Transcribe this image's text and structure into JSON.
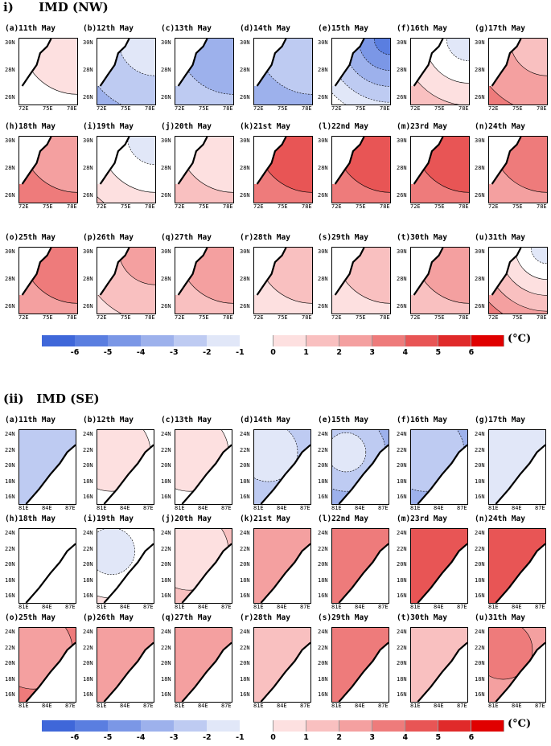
{
  "colors": {
    "-6": "#3f67d9",
    "-5": "#5a7ee0",
    "-4": "#7b97e6",
    "-3": "#9db1ec",
    "-2": "#becbf2",
    "-1": "#e1e7f8",
    "0": "#ffffff",
    "1": "#fde0e0",
    "2": "#f9c0c0",
    "3": "#f4a0a0",
    "4": "#ee7b7b",
    "5": "#e85555",
    "6": "#e02a2a",
    "7": "#e00000"
  },
  "colorbar": {
    "ticks": [
      "-6",
      "-5",
      "-4",
      "-3",
      "-2",
      "-1",
      "0",
      "1",
      "2",
      "3",
      "4",
      "5",
      "6"
    ],
    "levels": [
      "-6",
      "-5",
      "-4",
      "-3",
      "-2",
      "-1",
      "0",
      "1",
      "2",
      "3",
      "4",
      "5",
      "6",
      "7"
    ],
    "unit": "(°C)"
  },
  "sections": [
    {
      "id": "nw",
      "title": "i)      IMD (NW)",
      "ylabels": [
        "30N",
        "28N",
        "26N"
      ],
      "xlabels": [
        "72E",
        "75E",
        "78E"
      ],
      "panels": [
        {
          "label": "(a)11th May",
          "a": 0,
          "b": 1
        },
        {
          "label": "(b)12th May",
          "a": -3,
          "b": -1
        },
        {
          "label": "(c)13th May",
          "a": -2,
          "b": -3
        },
        {
          "label": "(d)14th May",
          "a": -3,
          "b": -2
        },
        {
          "label": "(e)15th May",
          "a": 1,
          "b": -5
        },
        {
          "label": "(f)16th May",
          "a": 3,
          "b": -1
        },
        {
          "label": "(g)17th May",
          "a": 4,
          "b": 2
        },
        {
          "label": "(h)18th May",
          "a": 4,
          "b": 3
        },
        {
          "label": "(i)19th May",
          "a": 2,
          "b": -1
        },
        {
          "label": "(j)20th May",
          "a": 2,
          "b": 1
        },
        {
          "label": "(k)21st May",
          "a": 4,
          "b": 4
        },
        {
          "label": "(l)22nd May",
          "a": 4,
          "b": 5
        },
        {
          "label": "(m)23rd May",
          "a": 4,
          "b": 4
        },
        {
          "label": "(n)24th May",
          "a": 3,
          "b": 4
        },
        {
          "label": "(o)25th May",
          "a": 3,
          "b": 4
        },
        {
          "label": "(p)26th May",
          "a": 1,
          "b": 3
        },
        {
          "label": "(q)27th May",
          "a": 2,
          "b": 3
        },
        {
          "label": "(r)28th May",
          "a": 1,
          "b": 2
        },
        {
          "label": "(s)29th May",
          "a": 1,
          "b": 2
        },
        {
          "label": "(t)30th May",
          "a": 2,
          "b": 2
        },
        {
          "label": "(u)31th May",
          "a": 5,
          "b": -1
        }
      ]
    },
    {
      "id": "se",
      "title": "(ii)   IMD (SE)",
      "ylabels": [
        "24N",
        "22N",
        "20N",
        "18N",
        "16N"
      ],
      "xlabels": [
        "81E",
        "84E",
        "87E"
      ],
      "panels": [
        {
          "label": "(a)11th May",
          "a": -1,
          "b": -2
        },
        {
          "label": "(b)12th May",
          "a": -1,
          "b": 1
        },
        {
          "label": "(c)13th May",
          "a": -1,
          "b": 1
        },
        {
          "label": "(d)14th May",
          "a": -4,
          "b": -1
        },
        {
          "label": "(e)15th May",
          "a": -6,
          "b": -1
        },
        {
          "label": "(f)16th May",
          "a": -4,
          "b": -2
        },
        {
          "label": "(g)17th May",
          "a": -2,
          "b": -1
        },
        {
          "label": "(h)18th May",
          "a": -1,
          "b": 0
        },
        {
          "label": "(i)19th May",
          "a": 3,
          "b": -1
        },
        {
          "label": "(j)20th May",
          "a": 3,
          "b": 1
        },
        {
          "label": "(k)21st May",
          "a": 4,
          "b": 3
        },
        {
          "label": "(l)22nd May",
          "a": 5,
          "b": 4
        },
        {
          "label": "(m)23rd May",
          "a": 4,
          "b": 5
        },
        {
          "label": "(n)24th May",
          "a": 4,
          "b": 5
        },
        {
          "label": "(o)25th May",
          "a": 5,
          "b": 3
        },
        {
          "label": "(p)26th May",
          "a": 4,
          "b": 3
        },
        {
          "label": "(q)27th May",
          "a": 4,
          "b": 3
        },
        {
          "label": "(r)28th May",
          "a": 3,
          "b": 2
        },
        {
          "label": "(s)29th May",
          "a": 3,
          "b": 3
        },
        {
          "label": "(t)30th May",
          "a": 3,
          "b": 2
        },
        {
          "label": "(u)31th May",
          "a": 1,
          "b": 4
        }
      ]
    }
  ]
}
